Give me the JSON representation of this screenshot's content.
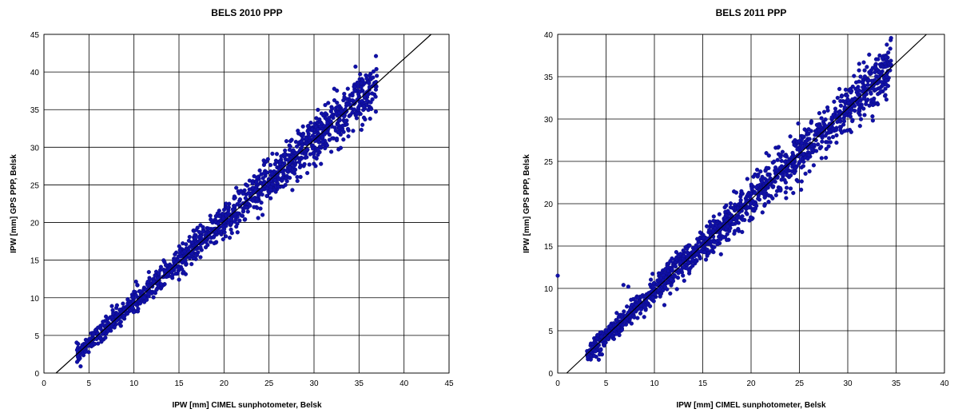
{
  "chart_data": [
    {
      "type": "scatter",
      "title": "BELS 2010 PPP",
      "xlabel": "IPW [mm] CIMEL sunphotometer, Belsk",
      "ylabel": "IPW [mm] GPS PPP, Belsk",
      "xlim": [
        0,
        45
      ],
      "ylim": [
        0,
        45
      ],
      "x_ticks": [
        0,
        5,
        10,
        15,
        20,
        25,
        30,
        35,
        40,
        45
      ],
      "y_ticks": [
        0,
        5,
        10,
        15,
        20,
        25,
        30,
        35,
        40,
        45
      ],
      "grid": true,
      "fit_line": {
        "slope": 1.08,
        "intercept": -1.45
      },
      "point_range": {
        "x_min": 3.6,
        "x_max": 37.0
      },
      "colors": {
        "points": "#1010a8",
        "line": "#000000"
      }
    },
    {
      "type": "scatter",
      "title": "BELS 2011 PPP",
      "xlabel": "IPW [mm] CIMEL sunphotometer, Belsk",
      "ylabel": "IPW [mm] GPS PPP, Belsk",
      "xlim": [
        0,
        40
      ],
      "ylim": [
        0,
        40
      ],
      "x_ticks": [
        0,
        5,
        10,
        15,
        20,
        25,
        30,
        35,
        40
      ],
      "y_ticks": [
        0,
        5,
        10,
        15,
        20,
        25,
        30,
        35,
        40
      ],
      "grid": true,
      "fit_line": {
        "slope": 1.075,
        "intercept": -1.0
      },
      "point_range": {
        "x_min": 3.0,
        "x_max": 34.5
      },
      "outliers": [
        [
          0.0,
          11.5
        ],
        [
          33.3,
          37.5
        ],
        [
          33.6,
          37.2
        ],
        [
          34.0,
          32.3
        ],
        [
          6.8,
          10.4
        ],
        [
          7.3,
          10.2
        ]
      ],
      "colors": {
        "points": "#1010a8",
        "line": "#000000"
      }
    }
  ]
}
